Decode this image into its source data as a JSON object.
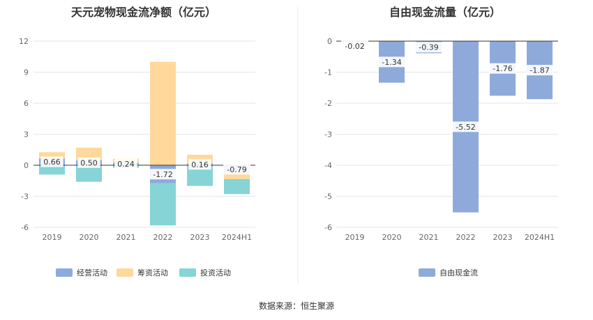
{
  "chart_data": [
    {
      "type": "bar",
      "stacked": true,
      "title": "天元宠物现金流净额（亿元）",
      "categories": [
        "2019",
        "2020",
        "2021",
        "2022",
        "2023",
        "2024H1"
      ],
      "ylim": [
        -6,
        12
      ],
      "yticks": [
        "12",
        "9",
        "6",
        "3",
        "0",
        "-3",
        "-6"
      ],
      "ytick_values": [
        12,
        9,
        6,
        3,
        0,
        -3,
        -6
      ],
      "grid": true,
      "legend_position": "bottom",
      "series": [
        {
          "name": "经营活动",
          "color": "#8eaadb",
          "values": [
            0.66,
            0.5,
            0.24,
            -1.72,
            0.16,
            -0.79
          ]
        },
        {
          "name": "筹资活动",
          "color": "#ffd89b",
          "values": [
            0.6,
            1.2,
            0.4,
            10.0,
            0.85,
            -0.55
          ]
        },
        {
          "name": "投资活动",
          "color": "#86d4d6",
          "values": [
            -0.9,
            -1.6,
            -0.25,
            -4.1,
            -2.0,
            -1.45
          ]
        }
      ],
      "data_labels": [
        "0.66",
        "0.50",
        "0.24",
        "-1.72",
        "0.16",
        "-0.79"
      ]
    },
    {
      "type": "bar",
      "title": "自由现金流量（亿元）",
      "categories": [
        "2019",
        "2020",
        "2021",
        "2022",
        "2023",
        "2024H1"
      ],
      "ylim": [
        -6,
        0
      ],
      "yticks": [
        "0",
        "-1",
        "-2",
        "-3",
        "-4",
        "-5",
        "-6"
      ],
      "ytick_values": [
        0,
        -1,
        -2,
        -3,
        -4,
        -5,
        -6
      ],
      "grid": true,
      "legend_position": "bottom",
      "series": [
        {
          "name": "自由现金流",
          "color": "#8eaadb",
          "values": [
            -0.02,
            -1.34,
            -0.39,
            -5.52,
            -1.76,
            -1.87
          ]
        }
      ],
      "data_labels": [
        "-0.02",
        "-1.34",
        "-0.39",
        "-5.52",
        "-1.76",
        "-1.87"
      ]
    }
  ],
  "source": "数据来源：恒生聚源",
  "colors": {
    "grid": "#e6e6e6",
    "divider": "#eeeeee",
    "zero_line": "#333333"
  }
}
